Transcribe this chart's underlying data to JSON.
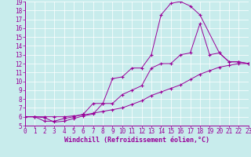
{
  "xlabel": "Windchill (Refroidissement éolien,°C)",
  "background_color": "#c8ecec",
  "line_color": "#990099",
  "grid_color": "#ffffff",
  "xlim": [
    0,
    23
  ],
  "ylim": [
    5,
    19
  ],
  "xticks": [
    0,
    1,
    2,
    3,
    4,
    5,
    6,
    7,
    8,
    9,
    10,
    11,
    12,
    13,
    14,
    15,
    16,
    17,
    18,
    19,
    20,
    21,
    22,
    23
  ],
  "yticks": [
    5,
    6,
    7,
    8,
    9,
    10,
    11,
    12,
    13,
    14,
    15,
    16,
    17,
    18,
    19
  ],
  "line1_x": [
    0,
    1,
    2,
    3,
    4,
    5,
    6,
    7,
    8,
    9,
    10,
    11,
    12,
    13,
    14,
    15,
    16,
    17,
    18,
    20,
    21,
    22,
    23
  ],
  "line1_y": [
    6,
    6,
    5.9,
    5.4,
    5.5,
    5.8,
    6.1,
    6.3,
    7.5,
    10.3,
    10.5,
    11.5,
    11.5,
    13.0,
    17.5,
    18.8,
    19.0,
    18.5,
    17.5,
    13.2,
    12.2,
    12.2,
    12.0
  ],
  "line2_x": [
    0,
    1,
    2,
    3,
    4,
    5,
    6,
    7,
    8,
    9,
    10,
    11,
    12,
    13,
    14,
    15,
    16,
    17,
    18,
    19,
    20,
    21,
    22,
    23
  ],
  "line2_y": [
    6,
    6,
    5.5,
    5.5,
    5.8,
    6.0,
    6.3,
    7.5,
    7.5,
    7.5,
    8.5,
    9.0,
    9.5,
    11.5,
    12.0,
    12.0,
    13.0,
    13.2,
    16.5,
    13.0,
    13.2,
    12.2,
    12.2,
    12.0
  ],
  "line3_x": [
    0,
    1,
    2,
    3,
    4,
    5,
    6,
    7,
    8,
    9,
    10,
    11,
    12,
    13,
    14,
    15,
    16,
    17,
    18,
    19,
    20,
    21,
    22,
    23
  ],
  "line3_y": [
    6,
    6,
    6,
    6,
    6,
    6.1,
    6.2,
    6.4,
    6.6,
    6.8,
    7.0,
    7.4,
    7.8,
    8.4,
    8.8,
    9.2,
    9.6,
    10.2,
    10.8,
    11.2,
    11.6,
    11.8,
    12.0,
    12.0
  ],
  "xlabel_fontsize": 6,
  "tick_fontsize": 5.5
}
